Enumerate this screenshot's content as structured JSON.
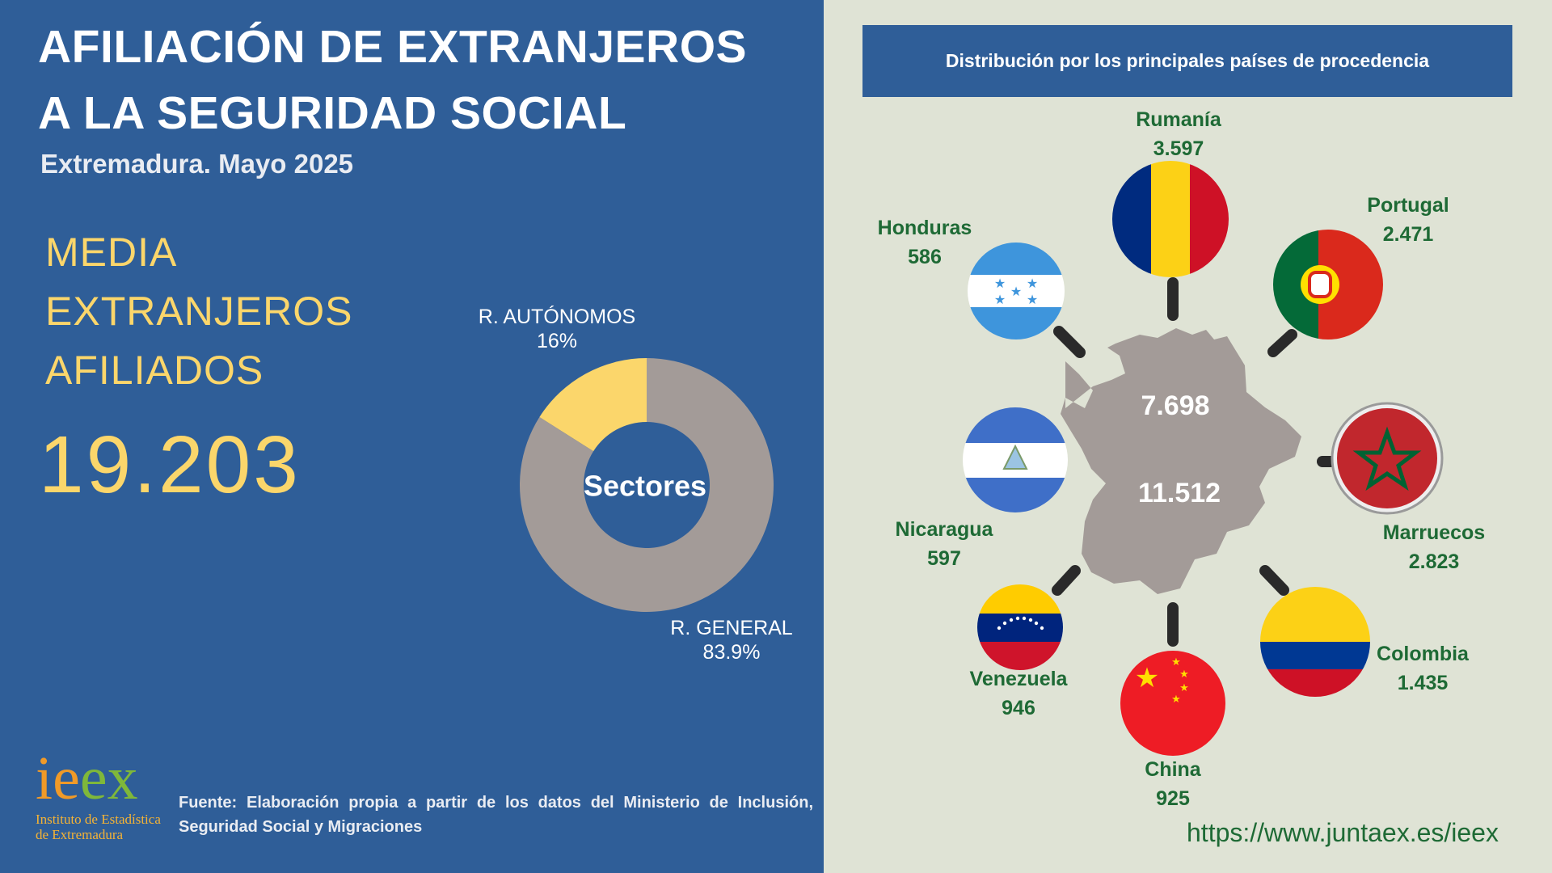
{
  "header": {
    "title_line1": "AFILIACIÓN DE EXTRANJEROS",
    "title_line2": "A LA SEGURIDAD SOCIAL",
    "subtitle": "Extremadura. Mayo 2025"
  },
  "summary": {
    "label_line1": "MEDIA",
    "label_line2": "EXTRANJEROS",
    "label_line3": "AFILIADOS",
    "total": "19.203"
  },
  "pie": {
    "center_label": "Sectores",
    "autonomos_label": "R. AUTÓNOMOS",
    "autonomos_pct": "16%",
    "general_label": "R. GENERAL",
    "general_pct": "83.9%"
  },
  "map": {
    "title": "Distribución por los principales países de procedencia",
    "value_top": "7.698",
    "value_bottom": "11.512",
    "countries": [
      {
        "name": "Rumanía",
        "value": "3.597"
      },
      {
        "name": "Portugal",
        "value": "2.471"
      },
      {
        "name": "Honduras",
        "value": "586"
      },
      {
        "name": "Nicaragua",
        "value": "597"
      },
      {
        "name": "Marruecos",
        "value": "2.823"
      },
      {
        "name": "Venezuela",
        "value": "946"
      },
      {
        "name": "Colombia",
        "value": "1.435"
      },
      {
        "name": "China",
        "value": "925"
      }
    ]
  },
  "footer": {
    "source": "Fuente: Elaboración propia a partir de los datos del Ministerio de Inclusión, Seguridad Social y Migraciones",
    "url": "https://www.juntaex.es/ieex",
    "logo_i": "i",
    "logo_e1": "e",
    "logo_e2": "e",
    "logo_x": "x",
    "logo_sub1": "Instituto de Estadística",
    "logo_sub2": "de Extremadura"
  },
  "colors": {
    "blue": "#2f5e98",
    "yellow": "#fbd66b",
    "gray": "#a39b98",
    "green": "#1e6a35"
  },
  "chart_data": {
    "type": "pie",
    "title": "Sectores",
    "categories": [
      "R. AUTÓNOMOS",
      "R. GENERAL"
    ],
    "values": [
      16,
      83.9
    ],
    "unit": "%"
  }
}
